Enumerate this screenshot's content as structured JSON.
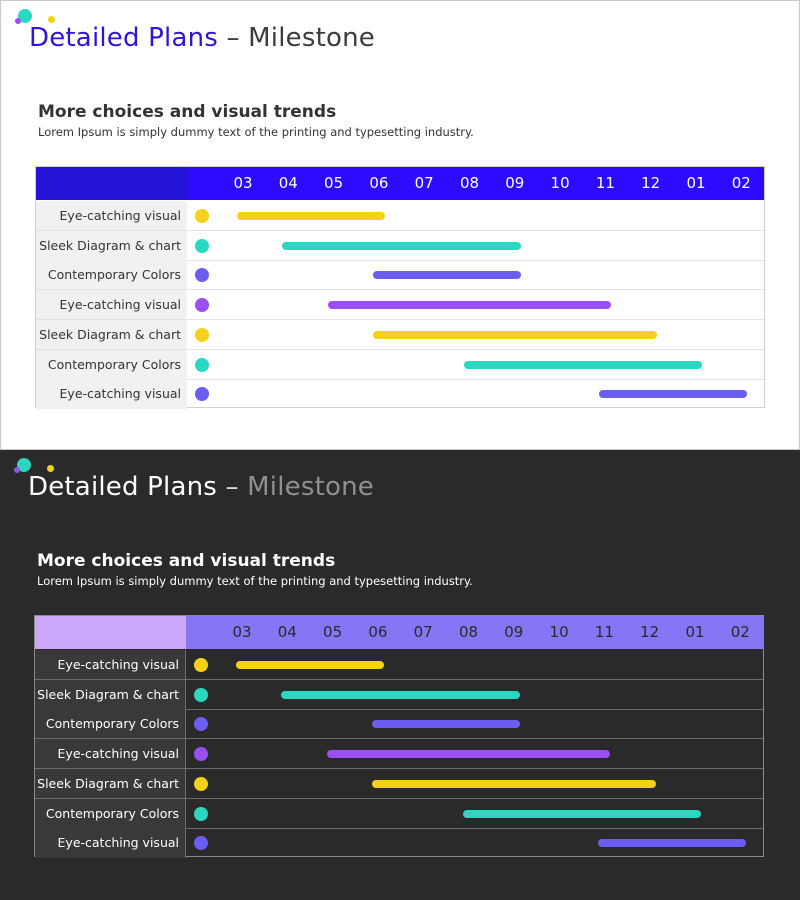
{
  "title": {
    "main": "Detailed Plans",
    "separator": " – ",
    "sub": "Milestone"
  },
  "heading": "More choices and visual trends",
  "subtext": "Lorem Ipsum is simply dummy text of the printing and typesetting industry.",
  "months": [
    "03",
    "04",
    "05",
    "06",
    "07",
    "08",
    "09",
    "10",
    "11",
    "12",
    "01",
    "02"
  ],
  "tasks": [
    {
      "label": "Eye-catching visual",
      "color": "#f5d11a",
      "start": "03",
      "end": "06"
    },
    {
      "label": "Sleek Diagram & chart",
      "color": "#2ad8c2",
      "start": "04",
      "end": "09"
    },
    {
      "label": "Contemporary Colors",
      "color": "#6a5df0",
      "start": "06",
      "end": "09"
    },
    {
      "label": "Eye-catching visual",
      "color": "#9a4ff2",
      "start": "05",
      "end": "11"
    },
    {
      "label": "Sleek Diagram & chart",
      "color": "#f5d11a",
      "start": "06",
      "end": "12"
    },
    {
      "label": "Contemporary Colors",
      "color": "#2ad8c2",
      "start": "08",
      "end": "01"
    },
    {
      "label": "Eye-catching visual",
      "color": "#6a5df0",
      "start": "11",
      "end": "02"
    }
  ],
  "theme_colors": {
    "light_header": "#2d0bff",
    "dark_header": "#8476f4",
    "dark_header_left": "#cba7fb"
  }
}
